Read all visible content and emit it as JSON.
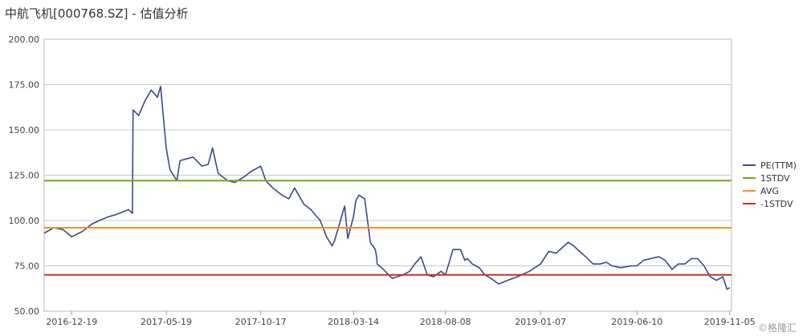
{
  "title": "中航飞机[000768.SZ] - 估值分析",
  "watermark": "©格隆汇",
  "chart_data": {
    "type": "line",
    "title": "中航飞机[000768.SZ] - 估值分析",
    "xlabel": "",
    "ylabel": "",
    "ylim": [
      50,
      200
    ],
    "yticks": [
      "50.00",
      "75.00",
      "100.00",
      "125.00",
      "150.00",
      "175.00",
      "200.00"
    ],
    "xticks": [
      "2016-12-19",
      "2017-05-19",
      "2017-10-17",
      "2018-03-14",
      "2018-08-08",
      "2019-01-07",
      "2019-06-10",
      "2019-11-05"
    ],
    "xlim": [
      "2016-11-05",
      "2019-11-08"
    ],
    "grid": "horizontal",
    "legend_position": "right",
    "series": [
      {
        "name": "PE(TTM)",
        "color": "#3a4a8c",
        "x": [
          "2016-11-05",
          "2016-11-20",
          "2016-12-05",
          "2016-12-19",
          "2017-01-05",
          "2017-01-20",
          "2017-02-01",
          "2017-02-15",
          "2017-02-25",
          "2017-03-05",
          "2017-03-20",
          "2017-03-26",
          "2017-03-27",
          "2017-04-05",
          "2017-04-15",
          "2017-04-25",
          "2017-05-05",
          "2017-05-10",
          "2017-05-19",
          "2017-05-25",
          "2017-06-05",
          "2017-06-10",
          "2017-06-20",
          "2017-07-01",
          "2017-07-15",
          "2017-07-25",
          "2017-08-01",
          "2017-08-10",
          "2017-08-25",
          "2017-09-05",
          "2017-09-20",
          "2017-10-01",
          "2017-10-17",
          "2017-10-25",
          "2017-11-05",
          "2017-11-20",
          "2017-12-01",
          "2017-12-10",
          "2017-12-25",
          "2018-01-05",
          "2018-01-20",
          "2018-01-30",
          "2018-02-08",
          "2018-02-12",
          "2018-02-18",
          "2018-02-28",
          "2018-03-05",
          "2018-03-14",
          "2018-03-18",
          "2018-03-23",
          "2018-04-01",
          "2018-04-10",
          "2018-04-18",
          "2018-04-20",
          "2018-04-21",
          "2018-05-01",
          "2018-05-15",
          "2018-06-01",
          "2018-06-12",
          "2018-06-20",
          "2018-06-30",
          "2018-07-10",
          "2018-07-20",
          "2018-08-01",
          "2018-08-08",
          "2018-08-20",
          "2018-09-01",
          "2018-09-08",
          "2018-09-12",
          "2018-09-20",
          "2018-10-01",
          "2018-10-10",
          "2018-10-20",
          "2018-11-01",
          "2018-11-15",
          "2018-12-01",
          "2018-12-20",
          "2019-01-07",
          "2019-01-20",
          "2019-02-01",
          "2019-02-20",
          "2019-03-01",
          "2019-03-10",
          "2019-03-20",
          "2019-04-01",
          "2019-04-12",
          "2019-04-22",
          "2019-05-01",
          "2019-05-15",
          "2019-06-01",
          "2019-06-10",
          "2019-06-20",
          "2019-07-01",
          "2019-07-15",
          "2019-07-25",
          "2019-08-05",
          "2019-08-15",
          "2019-08-25",
          "2019-09-05",
          "2019-09-15",
          "2019-09-25",
          "2019-10-05",
          "2019-10-15",
          "2019-10-25",
          "2019-11-01",
          "2019-11-05"
        ],
        "values": [
          93,
          96,
          95,
          91,
          94,
          98,
          100,
          102,
          103,
          104,
          106,
          104,
          161,
          158,
          166,
          172,
          168,
          174,
          140,
          128,
          122,
          133,
          134,
          135,
          130,
          131,
          140,
          126,
          122,
          121,
          124,
          127,
          130,
          122,
          118,
          114,
          112,
          118,
          109,
          106,
          100,
          91,
          86,
          89,
          96,
          108,
          90,
          102,
          111,
          114,
          112,
          88,
          84,
          80,
          76,
          73,
          68,
          70,
          72,
          76,
          80,
          70,
          69,
          72,
          70,
          84,
          84,
          78,
          79,
          76,
          74,
          70,
          68,
          65,
          67,
          69,
          72,
          76,
          83,
          82,
          88,
          86,
          83,
          80,
          76,
          76,
          77,
          75,
          74,
          75,
          75,
          78,
          79,
          80,
          78,
          73,
          76,
          76,
          79,
          79,
          75,
          69,
          67,
          69,
          62,
          63
        ]
      },
      {
        "name": "1STDV",
        "color": "#7aa51e",
        "values": [
          122,
          122
        ]
      },
      {
        "name": "AVG",
        "color": "#f3922b",
        "values": [
          96,
          96
        ]
      },
      {
        "name": "-1STDV",
        "color": "#c8321e",
        "values": [
          70,
          70
        ]
      }
    ]
  }
}
